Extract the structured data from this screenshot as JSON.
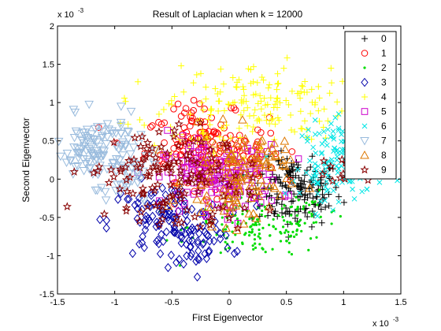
{
  "chart_data": {
    "type": "scatter",
    "title": "Result of Laplacian when k = 12000",
    "xlabel": "First Eigenvector",
    "ylabel": "Second Eigenvector",
    "x_exponent_label": "x 10",
    "x_exponent_power": "-3",
    "y_exponent_label": "x 10",
    "y_exponent_power": "-3",
    "xlim": [
      -1.5,
      1.5
    ],
    "ylim": [
      -1.5,
      2
    ],
    "xticks": [
      "-1.5",
      "-1",
      "-0.5",
      "0",
      "0.5",
      "1",
      "1.5"
    ],
    "yticks": [
      "-1.5",
      "-1",
      "-0.5",
      "0",
      "0.5",
      "1",
      "1.5",
      "2"
    ],
    "grid": false,
    "legend_position": "top-right",
    "series": [
      {
        "name": "0",
        "marker": "plus",
        "color": "#000000",
        "clusters": [
          {
            "cx": 0.58,
            "cy": -0.18,
            "sx": 0.2,
            "sy": 0.22,
            "n": 150
          },
          {
            "cx": 0.55,
            "cy": 0.15,
            "sx": 0.12,
            "sy": 0.1,
            "n": 20
          }
        ]
      },
      {
        "name": "1",
        "marker": "circle",
        "color": "#ff0000",
        "clusters": [
          {
            "cx": -0.2,
            "cy": 0.42,
            "sx": 0.27,
            "sy": 0.22,
            "n": 120
          },
          {
            "cx": -0.35,
            "cy": 0.75,
            "sx": 0.15,
            "sy": 0.12,
            "n": 25
          },
          {
            "cx": 0.1,
            "cy": 0.1,
            "sx": 0.15,
            "sy": 0.2,
            "n": 25
          }
        ]
      },
      {
        "name": "2",
        "marker": "dot",
        "color": "#00dd00",
        "clusters": [
          {
            "cx": 0.25,
            "cy": -0.62,
            "sx": 0.3,
            "sy": 0.2,
            "n": 150
          },
          {
            "cx": 0.7,
            "cy": -0.5,
            "sx": 0.15,
            "sy": 0.15,
            "n": 25
          }
        ]
      },
      {
        "name": "3",
        "marker": "diamond",
        "color": "#0000aa",
        "clusters": [
          {
            "cx": -0.55,
            "cy": -0.55,
            "sx": 0.25,
            "sy": 0.25,
            "n": 120
          },
          {
            "cx": -0.25,
            "cy": -0.85,
            "sx": 0.15,
            "sy": 0.15,
            "n": 30
          }
        ]
      },
      {
        "name": "4",
        "marker": "plus",
        "color": "#ffff00",
        "clusters": [
          {
            "cx": 0.25,
            "cy": 1.0,
            "sx": 0.4,
            "sy": 0.25,
            "n": 150
          },
          {
            "cx": -0.3,
            "cy": 0.6,
            "sx": 0.3,
            "sy": 0.3,
            "n": 40
          }
        ]
      },
      {
        "name": "5",
        "marker": "square",
        "color": "#cc00cc",
        "clusters": [
          {
            "cx": -0.05,
            "cy": 0.0,
            "sx": 0.25,
            "sy": 0.22,
            "n": 140
          },
          {
            "cx": -0.3,
            "cy": 0.3,
            "sx": 0.15,
            "sy": 0.15,
            "n": 20
          }
        ]
      },
      {
        "name": "6",
        "marker": "cross",
        "color": "#00e5e5",
        "clusters": [
          {
            "cx": 1.0,
            "cy": 0.25,
            "sx": 0.18,
            "sy": 0.25,
            "n": 130
          },
          {
            "cx": 0.8,
            "cy": 0.0,
            "sx": 0.1,
            "sy": 0.1,
            "n": 20
          }
        ]
      },
      {
        "name": "7",
        "marker": "triangle-down",
        "color": "#99bbdd",
        "clusters": [
          {
            "cx": -1.15,
            "cy": 0.38,
            "sx": 0.18,
            "sy": 0.22,
            "n": 120
          },
          {
            "cx": -0.9,
            "cy": 0.0,
            "sx": 0.15,
            "sy": 0.2,
            "n": 30
          }
        ]
      },
      {
        "name": "8",
        "marker": "triangle-up",
        "color": "#dd7700",
        "clusters": [
          {
            "cx": 0.05,
            "cy": 0.0,
            "sx": 0.22,
            "sy": 0.3,
            "n": 110
          },
          {
            "cx": 0.3,
            "cy": 0.35,
            "sx": 0.1,
            "sy": 0.1,
            "n": 20
          }
        ]
      },
      {
        "name": "9",
        "marker": "star",
        "color": "#880000",
        "clusters": [
          {
            "cx": -0.65,
            "cy": 0.1,
            "sx": 0.3,
            "sy": 0.3,
            "n": 100
          },
          {
            "cx": -0.3,
            "cy": -0.3,
            "sx": 0.25,
            "sy": 0.25,
            "n": 40
          },
          {
            "cx": 0.9,
            "cy": 0.0,
            "sx": 0.15,
            "sy": 0.15,
            "n": 10
          }
        ]
      }
    ]
  }
}
